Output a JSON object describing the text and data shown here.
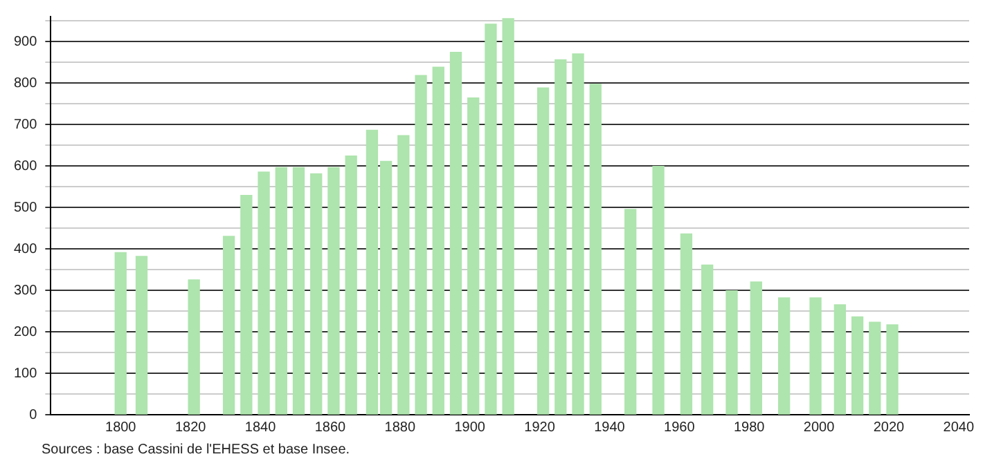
{
  "chart_data": {
    "type": "bar",
    "x": [
      1800,
      1806,
      1821,
      1831,
      1836,
      1841,
      1846,
      1851,
      1856,
      1861,
      1866,
      1872,
      1876,
      1881,
      1886,
      1891,
      1896,
      1901,
      1906,
      1911,
      1921,
      1926,
      1931,
      1936,
      1946,
      1954,
      1962,
      1968,
      1975,
      1982,
      1990,
      1999,
      2006,
      2011,
      2016,
      2021
    ],
    "values": [
      391,
      382,
      325,
      430,
      529,
      585,
      596,
      596,
      581,
      596,
      624,
      686,
      611,
      673,
      818,
      838,
      874,
      764,
      942,
      955,
      788,
      856,
      870,
      797,
      495,
      599,
      436,
      361,
      299,
      320,
      282,
      282,
      265,
      236,
      223,
      217
    ],
    "color": "#aee4ae",
    "xlim": [
      1780,
      2043
    ],
    "xticks": [
      1800,
      1820,
      1840,
      1860,
      1880,
      1900,
      1920,
      1940,
      1960,
      1980,
      2000,
      2020,
      2040
    ],
    "ylim": [
      0,
      960
    ],
    "yticks": [
      0,
      {
        "value": 50,
        "label": null
      },
      100,
      {
        "value": 150,
        "label": null
      },
      200,
      {
        "value": 250,
        "label": null
      },
      300,
      {
        "value": 350,
        "label": null
      },
      400,
      {
        "value": 450,
        "label": null
      },
      500,
      {
        "value": 550,
        "label": null
      },
      600,
      {
        "value": 650,
        "label": null
      },
      700,
      {
        "value": 750,
        "label": null
      },
      800,
      {
        "value": 850,
        "label": null
      },
      900,
      {
        "value": 950,
        "label": null
      }
    ],
    "grid": "y",
    "legend": false,
    "annotations": [
      "Sources : base Cassini de l'EHESS et base Insee."
    ]
  }
}
